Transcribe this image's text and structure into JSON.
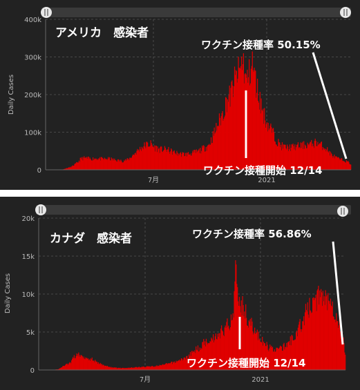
{
  "chart_data": [
    {
      "type": "bar",
      "title": "アメリカ　感染者",
      "ylabel": "Daily Cases",
      "ylim": [
        0,
        400000
      ],
      "yticks": [
        0,
        100000,
        200000,
        300000,
        400000
      ],
      "ytick_labels": [
        "0",
        "100k",
        "200k",
        "300k",
        "400k"
      ],
      "xtick_labels": [
        "7月",
        "2021"
      ],
      "annotations": {
        "vaccination_rate": "ワクチン接種率 50.15%",
        "vaccination_start": "ワクチン接種開始 12/14"
      },
      "grid": true,
      "keypoints": [
        [
          0,
          0
        ],
        [
          15,
          0
        ],
        [
          25,
          0
        ],
        [
          30,
          3000
        ],
        [
          40,
          8000
        ],
        [
          50,
          20000
        ],
        [
          55,
          30000
        ],
        [
          60,
          32000
        ],
        [
          70,
          30000
        ],
        [
          80,
          31000
        ],
        [
          90,
          29000
        ],
        [
          100,
          30000
        ],
        [
          110,
          26000
        ],
        [
          120,
          24000
        ],
        [
          130,
          28000
        ],
        [
          140,
          45000
        ],
        [
          150,
          60000
        ],
        [
          158,
          68000
        ],
        [
          165,
          70000
        ],
        [
          170,
          62000
        ],
        [
          180,
          55000
        ],
        [
          190,
          55000
        ],
        [
          200,
          48000
        ],
        [
          210,
          43000
        ],
        [
          220,
          42000
        ],
        [
          230,
          45000
        ],
        [
          240,
          50000
        ],
        [
          250,
          60000
        ],
        [
          255,
          65000
        ],
        [
          260,
          80000
        ],
        [
          270,
          120000
        ],
        [
          280,
          160000
        ],
        [
          285,
          190000
        ],
        [
          290,
          200000
        ],
        [
          295,
          230000
        ],
        [
          300,
          255000
        ],
        [
          305,
          270000
        ],
        [
          310,
          300000
        ],
        [
          315,
          240000
        ],
        [
          320,
          260000
        ],
        [
          325,
          290000
        ],
        [
          330,
          240000
        ],
        [
          335,
          200000
        ],
        [
          340,
          170000
        ],
        [
          345,
          140000
        ],
        [
          350,
          120000
        ],
        [
          355,
          110000
        ],
        [
          360,
          90000
        ],
        [
          365,
          75000
        ],
        [
          370,
          65000
        ],
        [
          380,
          60000
        ],
        [
          390,
          62000
        ],
        [
          400,
          65000
        ],
        [
          410,
          68000
        ],
        [
          420,
          70000
        ],
        [
          425,
          75000
        ],
        [
          430,
          70000
        ],
        [
          440,
          60000
        ],
        [
          450,
          40000
        ],
        [
          460,
          30000
        ],
        [
          470,
          25000
        ],
        [
          477,
          20000
        ],
        [
          480,
          15000
        ]
      ]
    },
    {
      "type": "bar",
      "title": "カナダ　感染者",
      "ylabel": "Daily Cases",
      "ylim": [
        0,
        20000
      ],
      "yticks": [
        0,
        5000,
        10000,
        15000,
        20000
      ],
      "ytick_labels": [
        "0",
        "5k",
        "10k",
        "15k",
        "20k"
      ],
      "xtick_labels": [
        "7月",
        "2021"
      ],
      "annotations": {
        "vaccination_rate": "ワクチン接種率 56.86%",
        "vaccination_start": "ワクチン接種開始 12/14"
      },
      "grid": true,
      "keypoints": [
        [
          0,
          0
        ],
        [
          20,
          0
        ],
        [
          30,
          100
        ],
        [
          40,
          600
        ],
        [
          50,
          1000
        ],
        [
          55,
          1800
        ],
        [
          60,
          2100
        ],
        [
          65,
          1900
        ],
        [
          70,
          1800
        ],
        [
          80,
          1500
        ],
        [
          85,
          1400
        ],
        [
          90,
          1000
        ],
        [
          100,
          700
        ],
        [
          110,
          400
        ],
        [
          120,
          300
        ],
        [
          130,
          250
        ],
        [
          150,
          350
        ],
        [
          160,
          400
        ],
        [
          170,
          450
        ],
        [
          180,
          500
        ],
        [
          190,
          600
        ],
        [
          200,
          800
        ],
        [
          210,
          1000
        ],
        [
          220,
          1300
        ],
        [
          230,
          1600
        ],
        [
          240,
          2300
        ],
        [
          250,
          3000
        ],
        [
          255,
          3300
        ],
        [
          260,
          3800
        ],
        [
          270,
          4200
        ],
        [
          280,
          4700
        ],
        [
          290,
          5500
        ],
        [
          300,
          6500
        ],
        [
          305,
          7500
        ],
        [
          308,
          16000
        ],
        [
          312,
          11000
        ],
        [
          315,
          9000
        ],
        [
          320,
          8500
        ],
        [
          330,
          6500
        ],
        [
          340,
          5000
        ],
        [
          350,
          3800
        ],
        [
          360,
          3000
        ],
        [
          370,
          2800
        ],
        [
          380,
          2900
        ],
        [
          390,
          3500
        ],
        [
          400,
          4500
        ],
        [
          410,
          6000
        ],
        [
          420,
          8000
        ],
        [
          430,
          9000
        ],
        [
          440,
          10000
        ],
        [
          445,
          10500
        ],
        [
          450,
          9500
        ],
        [
          455,
          10000
        ],
        [
          460,
          9000
        ],
        [
          465,
          7500
        ],
        [
          470,
          6500
        ],
        [
          475,
          5000
        ],
        [
          480,
          2000
        ]
      ]
    }
  ]
}
